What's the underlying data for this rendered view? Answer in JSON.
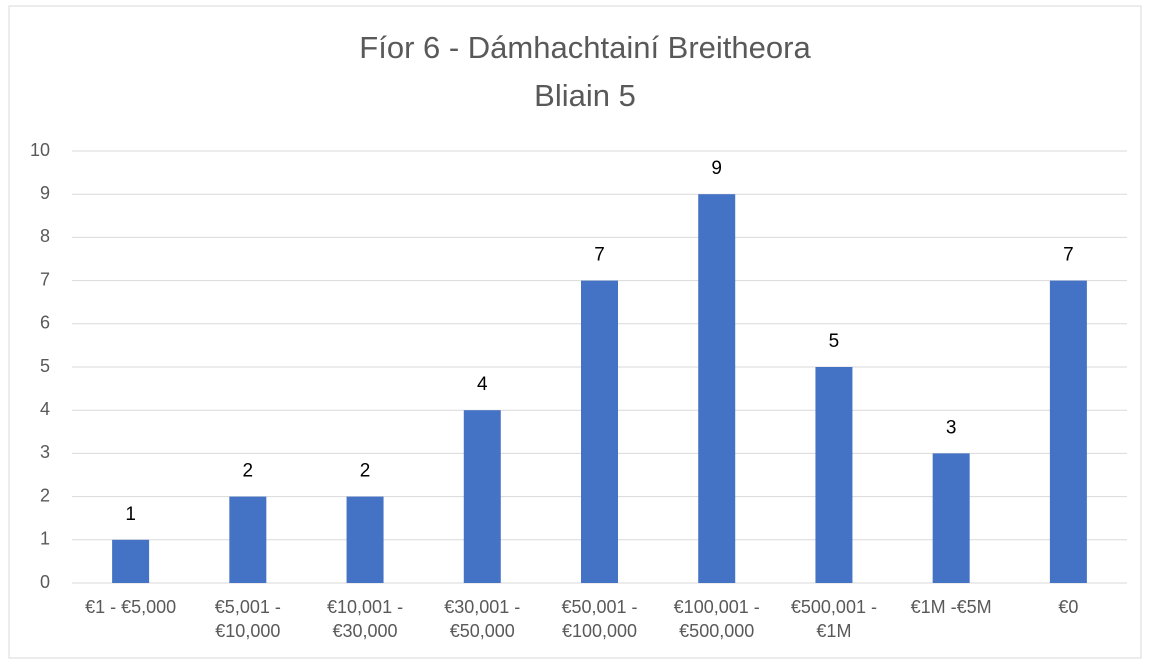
{
  "chart_data": {
    "type": "bar",
    "title": "Fíor 6 - Dámhachtainí Breitheora",
    "subtitle": "Bliain 5",
    "categories": [
      "€1 - €5,000",
      "€5,001 - €10,000",
      "€10,001 - €30,000",
      "€30,001 - €50,000",
      "€50,001 - €100,000",
      "€100,001 - €500,000",
      "€500,001 - €1M",
      "€1M -€5M",
      "€0"
    ],
    "values": [
      1,
      2,
      2,
      4,
      7,
      9,
      5,
      3,
      7
    ],
    "color": "#4472c4",
    "ylim": [
      0,
      10
    ],
    "yticks": [
      0,
      1,
      2,
      3,
      4,
      5,
      6,
      7,
      8,
      9,
      10
    ],
    "grid": true
  }
}
